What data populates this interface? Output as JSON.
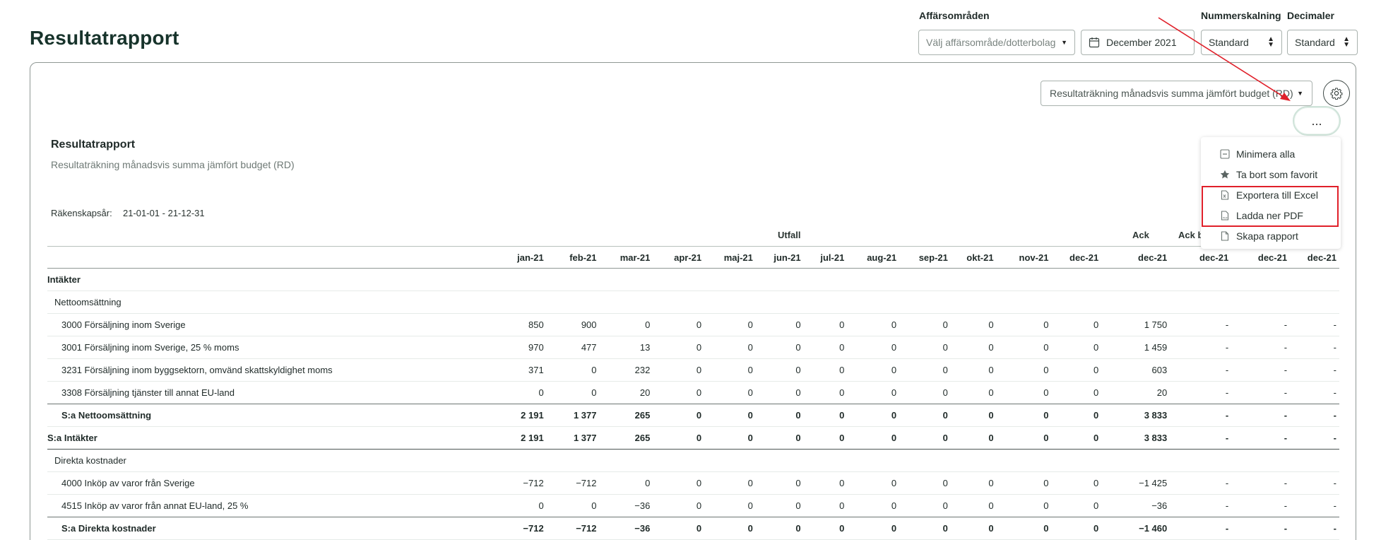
{
  "page": {
    "title": "Resultatrapport"
  },
  "filters": {
    "business_area": {
      "label": "Affärsområden",
      "placeholder": "Välj affärsområde/dotterbolag"
    },
    "period": {
      "value": "December 2021"
    },
    "number_scaling": {
      "label": "Nummerskalning",
      "value": "Standard"
    },
    "decimals": {
      "label": "Decimaler",
      "value": "Standard"
    }
  },
  "report_view": {
    "selected": "Resultaträkning månadsvis summa jämfört budget (RD)"
  },
  "more_button": {
    "label": "..."
  },
  "menu": {
    "items": [
      {
        "label": "Minimera alla",
        "icon": "minimize-icon"
      },
      {
        "label": "Ta bort som favorit",
        "icon": "star-icon"
      },
      {
        "label": "Exportera till Excel",
        "icon": "excel-file-icon"
      },
      {
        "label": "Ladda ner PDF",
        "icon": "pdf-file-icon"
      },
      {
        "label": "Skapa rapport",
        "icon": "document-icon"
      }
    ]
  },
  "report": {
    "title": "Resultatrapport",
    "subtitle": "Resultaträkning månadsvis summa jämfört budget (RD)",
    "fiscal_year_label": "Räkenskapsår:",
    "fiscal_year_value": "21-01-01 - 21-12-31",
    "group_headers": {
      "utfall": "Utfall",
      "ack": "Ack",
      "ack_b": "Ack b"
    },
    "columns": [
      "jan-21",
      "feb-21",
      "mar-21",
      "apr-21",
      "maj-21",
      "jun-21",
      "jul-21",
      "aug-21",
      "sep-21",
      "okt-21",
      "nov-21",
      "dec-21",
      "dec-21",
      "dec-21",
      "dec-21",
      "dec-21"
    ],
    "rows": [
      {
        "type": "section",
        "name": "Intäkter",
        "values": []
      },
      {
        "type": "subsection",
        "name": "Nettoomsättning",
        "values": []
      },
      {
        "type": "account",
        "name": "3000 Försäljning inom Sverige",
        "values": [
          "850",
          "900",
          "0",
          "0",
          "0",
          "0",
          "0",
          "0",
          "0",
          "0",
          "0",
          "0",
          "1 750",
          "-",
          "-",
          "-"
        ]
      },
      {
        "type": "account",
        "name": "3001 Försäljning inom Sverige, 25 % moms",
        "values": [
          "970",
          "477",
          "13",
          "0",
          "0",
          "0",
          "0",
          "0",
          "0",
          "0",
          "0",
          "0",
          "1 459",
          "-",
          "-",
          "-"
        ]
      },
      {
        "type": "account",
        "name": "3231 Försäljning inom byggsektorn, omvänd skattskyldighet moms",
        "values": [
          "371",
          "0",
          "232",
          "0",
          "0",
          "0",
          "0",
          "0",
          "0",
          "0",
          "0",
          "0",
          "603",
          "-",
          "-",
          "-"
        ]
      },
      {
        "type": "account",
        "name": "3308 Försäljning tjänster till annat EU-land",
        "values": [
          "0",
          "0",
          "20",
          "0",
          "0",
          "0",
          "0",
          "0",
          "0",
          "0",
          "0",
          "0",
          "20",
          "-",
          "-",
          "-"
        ]
      },
      {
        "type": "subtotal",
        "name": "S:a Nettoomsättning",
        "values": [
          "2 191",
          "1 377",
          "265",
          "0",
          "0",
          "0",
          "0",
          "0",
          "0",
          "0",
          "0",
          "0",
          "3 833",
          "-",
          "-",
          "-"
        ]
      },
      {
        "type": "total",
        "name": "S:a Intäkter",
        "values": [
          "2 191",
          "1 377",
          "265",
          "0",
          "0",
          "0",
          "0",
          "0",
          "0",
          "0",
          "0",
          "0",
          "3 833",
          "-",
          "-",
          "-"
        ]
      },
      {
        "type": "subsection",
        "name": "Direkta kostnader",
        "values": []
      },
      {
        "type": "account",
        "name": "4000 Inköp av varor från Sverige",
        "values": [
          "−712",
          "−712",
          "0",
          "0",
          "0",
          "0",
          "0",
          "0",
          "0",
          "0",
          "0",
          "0",
          "−1 425",
          "-",
          "-",
          "-"
        ]
      },
      {
        "type": "account",
        "name": "4515 Inköp av varor från annat EU-land, 25 %",
        "values": [
          "0",
          "0",
          "−36",
          "0",
          "0",
          "0",
          "0",
          "0",
          "0",
          "0",
          "0",
          "0",
          "−36",
          "-",
          "-",
          "-"
        ]
      },
      {
        "type": "subtotal",
        "name": "S:a Direkta kostnader",
        "values": [
          "−712",
          "−712",
          "−36",
          "0",
          "0",
          "0",
          "0",
          "0",
          "0",
          "0",
          "0",
          "0",
          "−1 460",
          "-",
          "-",
          "-"
        ]
      }
    ]
  },
  "colors": {
    "accent_dark_green": "#17332b",
    "highlight_red": "#e0202a",
    "annotation_arrow": "#e0202a"
  }
}
